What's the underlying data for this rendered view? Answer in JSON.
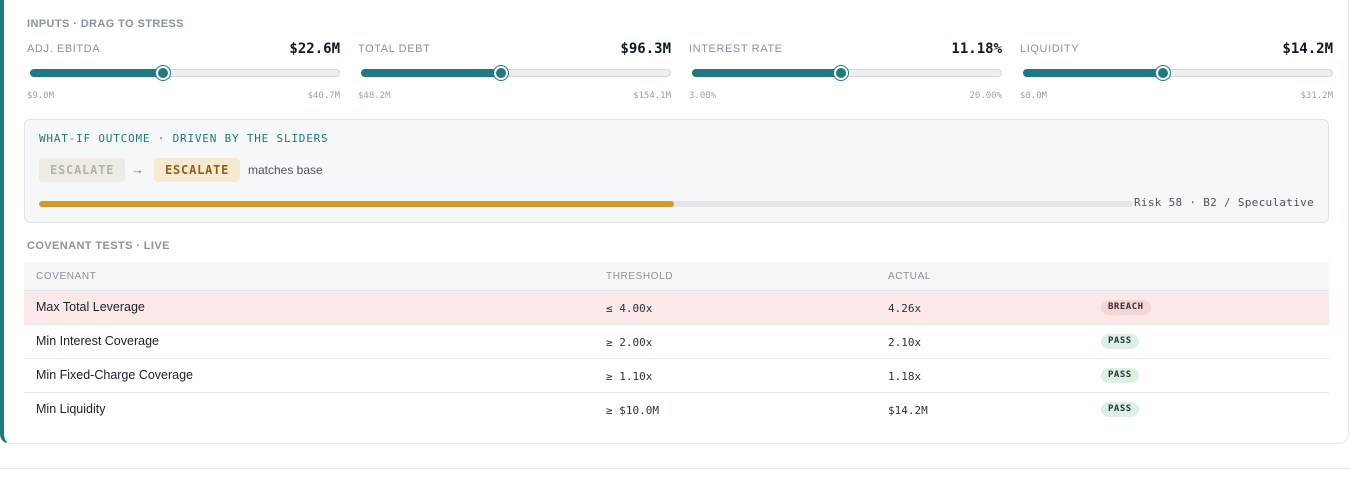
{
  "inputs": {
    "title": "INPUTS · DRAG TO STRESS",
    "sliders": [
      {
        "label": "ADJ. EBITDA",
        "value": "$22.6M",
        "min": "$9.0M",
        "max": "$40.7M",
        "fraction": 0.43
      },
      {
        "label": "TOTAL DEBT",
        "value": "$96.3M",
        "min": "$48.2M",
        "max": "$154.1M",
        "fraction": 0.45
      },
      {
        "label": "INTEREST RATE",
        "value": "11.18%",
        "min": "3.00%",
        "max": "20.00%",
        "fraction": 0.48
      },
      {
        "label": "LIQUIDITY",
        "value": "$14.2M",
        "min": "$0.0M",
        "max": "$31.2M",
        "fraction": 0.45
      }
    ]
  },
  "whatif": {
    "title": "WHAT-IF OUTCOME · DRIVEN BY THE SLIDERS",
    "base_outcome": "ESCALATE",
    "arrow": "→",
    "new_outcome": "ESCALATE",
    "comparison": "matches base",
    "risk_fraction": 0.58,
    "risk_text": "Risk 58 · B2 / Speculative",
    "colors": {
      "risk_fill": "#d49a28",
      "accent": "#1e7a80"
    }
  },
  "covenants": {
    "title": "COVENANT TESTS · LIVE",
    "headers": {
      "covenant": "COVENANT",
      "threshold": "THRESHOLD",
      "actual": "ACTUAL"
    },
    "rows": [
      {
        "name": "Max Total Leverage",
        "threshold": "≤ 4.00x",
        "actual": "4.26x",
        "status": "BREACH"
      },
      {
        "name": "Min Interest Coverage",
        "threshold": "≥ 2.00x",
        "actual": "2.10x",
        "status": "PASS"
      },
      {
        "name": "Min Fixed-Charge Coverage",
        "threshold": "≥ 1.10x",
        "actual": "1.18x",
        "status": "PASS"
      },
      {
        "name": "Min Liquidity",
        "threshold": "≥ $10.0M",
        "actual": "$14.2M",
        "status": "PASS"
      }
    ]
  }
}
